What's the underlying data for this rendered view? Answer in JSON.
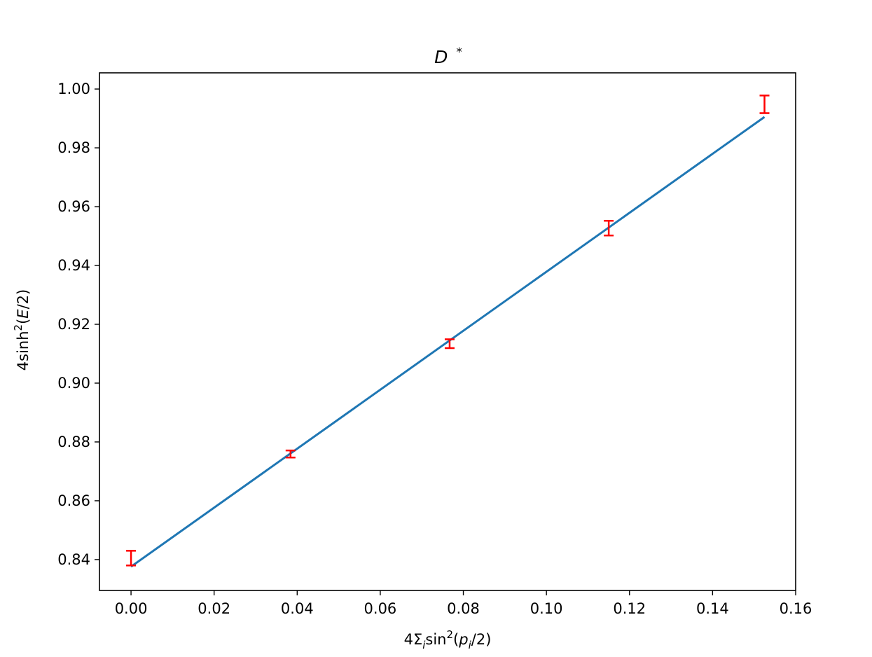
{
  "chart_data": {
    "type": "scatter",
    "title": "D *",
    "xlabel": "4Σ_i sin²(p_i/2)",
    "ylabel": "4sinh²(E/2)",
    "xlim": [
      -0.0076,
      0.16
    ],
    "ylim": [
      0.8295,
      1.0055
    ],
    "xticks": [
      0.0,
      0.02,
      0.04,
      0.06,
      0.08,
      0.1,
      0.12,
      0.14,
      0.16
    ],
    "xtick_labels": [
      "0.00",
      "0.02",
      "0.04",
      "0.06",
      "0.08",
      "0.10",
      "0.12",
      "0.14",
      "0.16"
    ],
    "yticks": [
      0.84,
      0.86,
      0.88,
      0.9,
      0.92,
      0.94,
      0.96,
      0.98,
      1.0
    ],
    "ytick_labels": [
      "0.84",
      "0.86",
      "0.88",
      "0.90",
      "0.92",
      "0.94",
      "0.96",
      "0.98",
      "1.00"
    ],
    "grid": false,
    "series": [
      {
        "kind": "errorbar",
        "color": "#ff0000",
        "points": [
          {
            "x": 0.0,
            "y": 0.8405,
            "yerr": 0.0025
          },
          {
            "x": 0.0384,
            "y": 0.8759,
            "yerr": 0.0012
          },
          {
            "x": 0.0767,
            "y": 0.9134,
            "yerr": 0.0015
          },
          {
            "x": 0.115,
            "y": 0.9527,
            "yerr": 0.0025
          },
          {
            "x": 0.1525,
            "y": 0.9948,
            "yerr": 0.003
          }
        ]
      },
      {
        "kind": "fit-line",
        "color": "#1f77b4",
        "x": [
          0.0,
          0.1525
        ],
        "y": [
          0.8376,
          0.9905
        ]
      }
    ]
  }
}
